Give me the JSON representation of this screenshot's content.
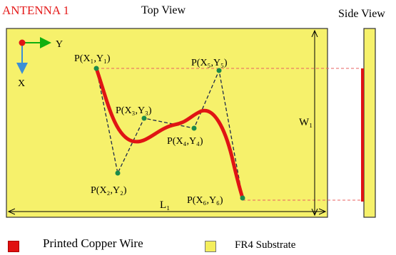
{
  "title": "ANTENNA 1",
  "views": {
    "top": "Top View",
    "side": "Side View"
  },
  "axes": {
    "y": "Y",
    "x": "X"
  },
  "points": [
    {
      "sub": "1",
      "label": "P(X₁,Y₁)"
    },
    {
      "sub": "2",
      "label": "P(X₂,Y₂)"
    },
    {
      "sub": "3",
      "label": "P(X₃,Y₃)"
    },
    {
      "sub": "4",
      "label": "P(X₄,Y₄)"
    },
    {
      "sub": "5",
      "label": "P(X₅,Y₅)"
    },
    {
      "sub": "6",
      "label": "P(X₆,Y₆)"
    }
  ],
  "dimensions": {
    "length": "L₁",
    "width": "W₁"
  },
  "legend": {
    "copper": "Printed Copper Wire",
    "fr4": "FR4 Substrate"
  },
  "colors": {
    "substrate": "#f6f16b",
    "copper": "#e01414",
    "dot": "#1b8a4a",
    "title": "#e41a1a"
  }
}
